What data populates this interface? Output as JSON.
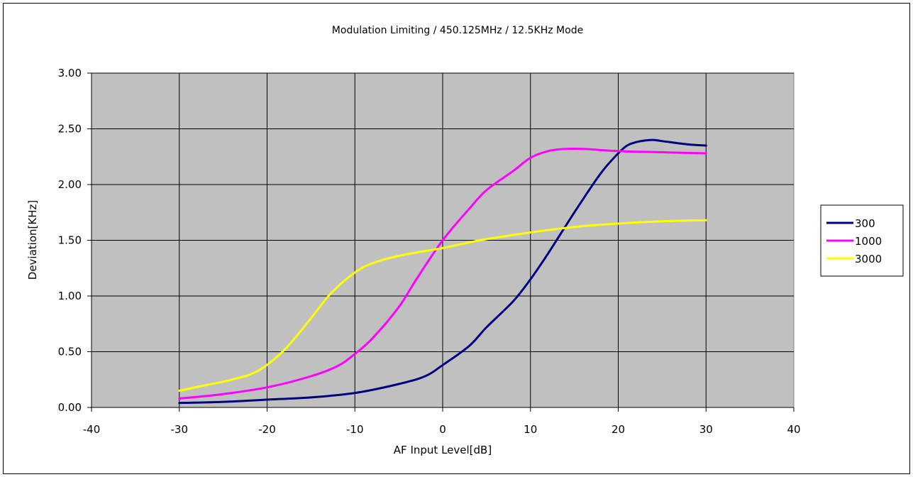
{
  "chart_data": {
    "type": "line",
    "title": "Modulation Limiting / 450.125MHz / 12.5KHz Mode",
    "xlabel": "AF Input Level[dB]",
    "ylabel": "Deviation[KHz]",
    "xlim": [
      -40,
      40
    ],
    "ylim": [
      0,
      3
    ],
    "xticks": [
      "-40",
      "-30",
      "-20",
      "-10",
      "0",
      "10",
      "20",
      "30",
      "40"
    ],
    "yticks": [
      "0.00",
      "0.50",
      "1.00",
      "1.50",
      "2.00",
      "2.50",
      "3.00"
    ],
    "grid": true,
    "plot_background": "#c0c0c0",
    "legend_position": "right",
    "series": [
      {
        "name": "300",
        "color": "#000080",
        "x": [
          -30,
          -25,
          -20,
          -15,
          -10,
          -5,
          -2,
          0,
          3,
          5,
          8,
          10,
          12,
          15,
          18,
          20,
          21,
          22,
          23,
          24,
          25,
          28,
          30
        ],
        "y": [
          0.04,
          0.05,
          0.07,
          0.09,
          0.13,
          0.21,
          0.28,
          0.38,
          0.55,
          0.72,
          0.95,
          1.15,
          1.38,
          1.75,
          2.1,
          2.28,
          2.35,
          2.38,
          2.395,
          2.4,
          2.39,
          2.36,
          2.35
        ]
      },
      {
        "name": "1000",
        "color": "#ff00ff",
        "x": [
          -30,
          -25,
          -20,
          -15,
          -12,
          -10,
          -8,
          -5,
          -3,
          0,
          3,
          5,
          8,
          10,
          12,
          14,
          16,
          20,
          25,
          30
        ],
        "y": [
          0.08,
          0.12,
          0.18,
          0.28,
          0.37,
          0.48,
          0.62,
          0.9,
          1.15,
          1.5,
          1.78,
          1.95,
          2.12,
          2.24,
          2.3,
          2.32,
          2.32,
          2.3,
          2.29,
          2.28
        ]
      },
      {
        "name": "3000",
        "color": "#ffff00",
        "x": [
          -30,
          -27,
          -24,
          -21,
          -18,
          -15,
          -13,
          -11,
          -9,
          -7,
          -5,
          -3,
          0,
          3,
          5,
          10,
          15,
          20,
          25,
          30
        ],
        "y": [
          0.15,
          0.2,
          0.25,
          0.33,
          0.52,
          0.8,
          1.0,
          1.15,
          1.26,
          1.32,
          1.36,
          1.39,
          1.43,
          1.48,
          1.51,
          1.57,
          1.62,
          1.65,
          1.67,
          1.68
        ]
      }
    ]
  }
}
